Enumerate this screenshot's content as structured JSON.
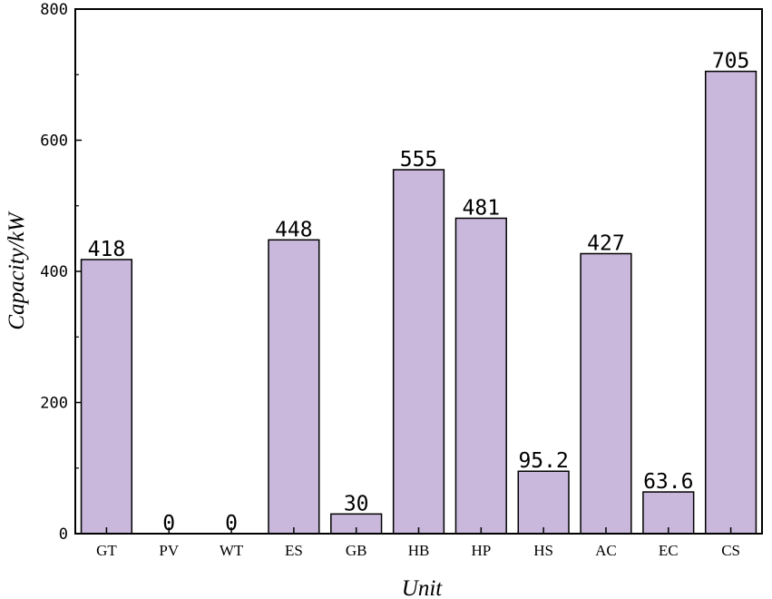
{
  "chart_data": {
    "type": "bar",
    "categories": [
      "GT",
      "PV",
      "WT",
      "ES",
      "GB",
      "HB",
      "HP",
      "HS",
      "AC",
      "EC",
      "CS"
    ],
    "values": [
      418,
      0,
      0,
      448,
      30,
      555,
      481,
      95.2,
      427,
      63.6,
      705
    ],
    "value_labels": [
      "418",
      "0",
      "0",
      "448",
      "30",
      "555",
      "481",
      "95.2",
      "427",
      "63.6",
      "705"
    ],
    "xlabel": "Unit",
    "ylabel": "Capacity/kW",
    "ylim": [
      0,
      800
    ],
    "yticks": [
      0,
      200,
      400,
      600,
      800
    ],
    "ytick_labels": [
      "0",
      "200",
      "400",
      "600",
      "800"
    ],
    "grid": false,
    "bar_color": "#c9b8db",
    "bar_edge_color": "#000000"
  }
}
